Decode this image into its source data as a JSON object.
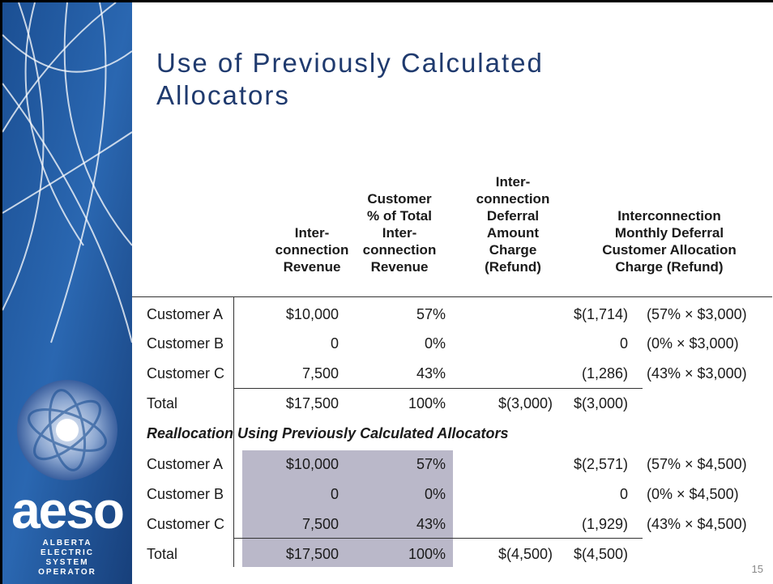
{
  "title": "Use of Previously Calculated\nAllocators",
  "table": {
    "headers": {
      "revenue": "Inter-\nconnection\nRevenue",
      "percent": "Customer\n% of Total\nInter-\nconnection\nRevenue",
      "deferral": "Inter-\nconnection\nDeferral\nAmount\nCharge\n(Refund)",
      "charge": "Interconnection\nMonthly Deferral\nCustomer Allocation\nCharge (Refund)"
    },
    "rows": [
      {
        "label": "Customer A",
        "revenue": "$10,000",
        "percent": "57%",
        "charge": "$(1,714)",
        "formula": "(57% × $3,000)"
      },
      {
        "label": "Customer B",
        "revenue": "0",
        "percent": "0%",
        "charge": "0",
        "formula": "(0% × $3,000)"
      },
      {
        "label": "Customer C",
        "revenue": "7,500",
        "percent": "43%",
        "charge": "(1,286)",
        "formula": "(43% × $3,000)"
      },
      {
        "label": "Total",
        "revenue": "$17,500",
        "percent": "100%",
        "deferral": "$(3,000)",
        "charge": "$(3,000)"
      }
    ],
    "reallocation": {
      "label": "Reallocation Using Previously Calculated Allocators",
      "rows": [
        {
          "label": "Customer A",
          "revenue": "$10,000",
          "percent": "57%",
          "charge": "$(2,571)",
          "formula": "(57% × $4,500)"
        },
        {
          "label": "Customer B",
          "revenue": "0",
          "percent": "0%",
          "charge": "0",
          "formula": "(0% × $4,500)"
        },
        {
          "label": "Customer C",
          "revenue": "7,500",
          "percent": "43%",
          "charge": "(1,929)",
          "formula": "(43% × $4,500)"
        },
        {
          "label": "Total",
          "revenue": "$17,500",
          "percent": "100%",
          "deferral": "$(4,500)",
          "charge": "$(4,500)"
        }
      ]
    }
  },
  "logo": {
    "name": "aeso",
    "tagline": "ALBERTA\nELECTRIC\nSYSTEM\nOPERATOR"
  },
  "page_number": "15"
}
